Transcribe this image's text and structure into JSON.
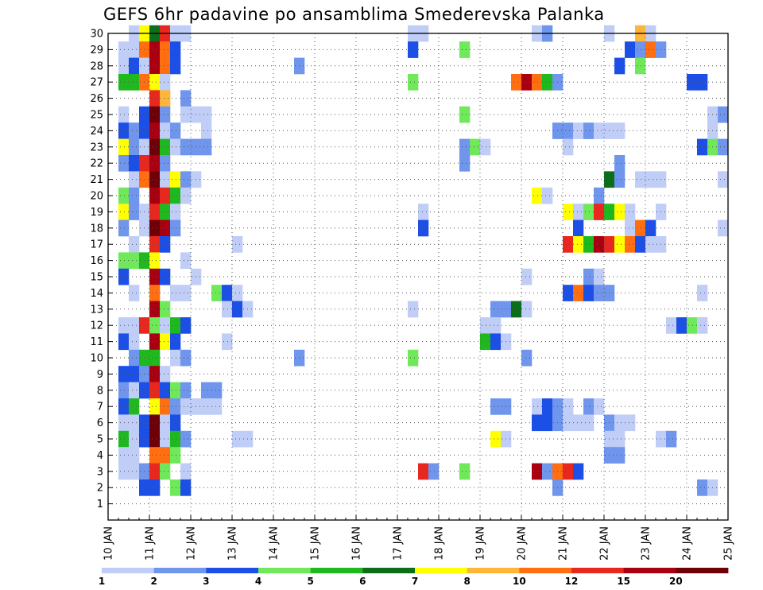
{
  "chart_data": {
    "type": "heatmap",
    "title": "GEFS 6hr padavine po ansamblima Smederevska Palanka",
    "xlabel": "",
    "ylabel": "",
    "x_tick_labels": [
      "10 JAN",
      "11 JAN",
      "12 JAN",
      "13 JAN",
      "14 JAN",
      "15 JAN",
      "16 JAN",
      "17 JAN",
      "18 JAN",
      "19 JAN",
      "20 JAN",
      "21 JAN",
      "22 JAN",
      "23 JAN",
      "24 JAN",
      "25 JAN"
    ],
    "y_tick_labels": [
      "1",
      "2",
      "3",
      "4",
      "5",
      "6",
      "7",
      "8",
      "9",
      "10",
      "11",
      "12",
      "13",
      "14",
      "15",
      "16",
      "17",
      "18",
      "19",
      "20",
      "21",
      "22",
      "23",
      "24",
      "25",
      "26",
      "27",
      "28",
      "29",
      "30"
    ],
    "xlim_days": [
      10,
      25
    ],
    "ylim_members": [
      0,
      30
    ],
    "step_hours": 6,
    "grid": true,
    "colorbar": {
      "placement": "bottom",
      "tick_labels": [
        "1",
        "2",
        "3",
        "4",
        "5",
        "6",
        "7",
        "8",
        "10",
        "12",
        "15",
        "20"
      ],
      "colors": [
        "#bfcdf7",
        "#6f95ec",
        "#1c4fe6",
        "#6fe85a",
        "#1fb91f",
        "#0c6e1a",
        "#ffff00",
        "#ffb638",
        "#ff6e10",
        "#e8281e",
        "#a80010",
        "#6e0008"
      ]
    },
    "cells_format": "[member, day_of_january, precipitation_class_1_to_12]",
    "cells": [
      [
        30,
        10.5,
        1
      ],
      [
        30,
        10.75,
        7
      ],
      [
        30,
        11.0,
        6
      ],
      [
        30,
        11.25,
        10
      ],
      [
        30,
        11.5,
        1
      ],
      [
        30,
        11.75,
        1
      ],
      [
        30,
        17.25,
        1
      ],
      [
        30,
        17.5,
        1
      ],
      [
        30,
        20.25,
        1
      ],
      [
        30,
        20.5,
        2
      ],
      [
        30,
        22.0,
        1
      ],
      [
        30,
        22.75,
        8
      ],
      [
        30,
        23.0,
        1
      ],
      [
        29,
        10.25,
        1
      ],
      [
        29,
        10.5,
        1
      ],
      [
        29,
        10.75,
        9
      ],
      [
        29,
        11.0,
        11
      ],
      [
        29,
        11.25,
        9
      ],
      [
        29,
        11.5,
        3
      ],
      [
        29,
        17.25,
        3
      ],
      [
        29,
        18.5,
        4
      ],
      [
        29,
        22.5,
        3
      ],
      [
        29,
        22.75,
        2
      ],
      [
        29,
        23.0,
        9
      ],
      [
        29,
        23.25,
        2
      ],
      [
        28,
        10.25,
        1
      ],
      [
        28,
        10.5,
        3
      ],
      [
        28,
        10.75,
        1
      ],
      [
        28,
        11.0,
        11
      ],
      [
        28,
        11.25,
        9
      ],
      [
        28,
        11.5,
        3
      ],
      [
        28,
        14.5,
        2
      ],
      [
        28,
        22.25,
        3
      ],
      [
        28,
        22.75,
        4
      ],
      [
        27,
        10.25,
        5
      ],
      [
        27,
        10.5,
        5
      ],
      [
        27,
        10.75,
        9
      ],
      [
        27,
        11.0,
        7
      ],
      [
        27,
        11.25,
        1
      ],
      [
        27,
        17.25,
        4
      ],
      [
        27,
        19.75,
        9
      ],
      [
        27,
        20.0,
        11
      ],
      [
        27,
        20.25,
        9
      ],
      [
        27,
        20.5,
        5
      ],
      [
        27,
        20.75,
        2
      ],
      [
        27,
        24.0,
        3
      ],
      [
        27,
        24.25,
        3
      ],
      [
        26,
        11.0,
        10
      ],
      [
        26,
        11.25,
        8
      ],
      [
        26,
        11.75,
        2
      ],
      [
        25,
        10.25,
        1
      ],
      [
        25,
        10.75,
        3
      ],
      [
        25,
        11.0,
        12
      ],
      [
        25,
        11.25,
        2
      ],
      [
        25,
        11.75,
        1
      ],
      [
        25,
        12.0,
        1
      ],
      [
        25,
        12.25,
        1
      ],
      [
        25,
        18.5,
        4
      ],
      [
        25,
        24.5,
        1
      ],
      [
        25,
        24.75,
        2
      ],
      [
        24,
        10.25,
        3
      ],
      [
        24,
        10.5,
        2
      ],
      [
        24,
        10.75,
        3
      ],
      [
        24,
        11.0,
        11
      ],
      [
        24,
        11.25,
        1
      ],
      [
        24,
        11.5,
        2
      ],
      [
        24,
        12.25,
        1
      ],
      [
        24,
        20.75,
        2
      ],
      [
        24,
        21.0,
        2
      ],
      [
        24,
        21.25,
        1
      ],
      [
        24,
        21.5,
        2
      ],
      [
        24,
        21.75,
        1
      ],
      [
        24,
        22.0,
        1
      ],
      [
        24,
        22.25,
        1
      ],
      [
        24,
        24.5,
        1
      ],
      [
        23,
        10.25,
        7
      ],
      [
        23,
        10.5,
        2
      ],
      [
        23,
        10.75,
        1
      ],
      [
        23,
        11.0,
        12
      ],
      [
        23,
        11.25,
        5
      ],
      [
        23,
        11.5,
        1
      ],
      [
        23,
        11.75,
        2
      ],
      [
        23,
        12.0,
        2
      ],
      [
        23,
        12.25,
        2
      ],
      [
        23,
        18.5,
        2
      ],
      [
        23,
        18.75,
        4
      ],
      [
        23,
        19.0,
        1
      ],
      [
        23,
        21.0,
        1
      ],
      [
        23,
        24.25,
        3
      ],
      [
        23,
        24.5,
        4
      ],
      [
        23,
        24.75,
        2
      ],
      [
        22,
        10.25,
        2
      ],
      [
        22,
        10.5,
        3
      ],
      [
        22,
        10.75,
        10
      ],
      [
        22,
        11.0,
        11
      ],
      [
        22,
        11.25,
        2
      ],
      [
        22,
        18.5,
        2
      ],
      [
        22,
        22.25,
        2
      ],
      [
        21,
        10.5,
        1
      ],
      [
        21,
        10.75,
        9
      ],
      [
        21,
        11.0,
        12
      ],
      [
        21,
        11.25,
        1
      ],
      [
        21,
        11.5,
        7
      ],
      [
        21,
        11.75,
        2
      ],
      [
        21,
        12.0,
        1
      ],
      [
        21,
        22.0,
        6
      ],
      [
        21,
        22.25,
        2
      ],
      [
        21,
        22.75,
        1
      ],
      [
        21,
        23.0,
        1
      ],
      [
        21,
        23.25,
        1
      ],
      [
        21,
        24.75,
        1
      ],
      [
        20,
        10.25,
        4
      ],
      [
        20,
        10.5,
        2
      ],
      [
        20,
        11.0,
        11
      ],
      [
        20,
        11.25,
        10
      ],
      [
        20,
        11.5,
        5
      ],
      [
        20,
        11.75,
        1
      ],
      [
        20,
        20.25,
        7
      ],
      [
        20,
        20.5,
        1
      ],
      [
        20,
        21.75,
        2
      ],
      [
        19,
        10.25,
        7
      ],
      [
        19,
        10.5,
        2
      ],
      [
        19,
        10.75,
        1
      ],
      [
        19,
        11.0,
        10
      ],
      [
        19,
        11.25,
        5
      ],
      [
        19,
        11.5,
        1
      ],
      [
        19,
        17.5,
        1
      ],
      [
        19,
        21.0,
        7
      ],
      [
        19,
        21.25,
        1
      ],
      [
        19,
        21.5,
        4
      ],
      [
        19,
        21.75,
        10
      ],
      [
        19,
        22.0,
        5
      ],
      [
        19,
        22.25,
        7
      ],
      [
        19,
        22.5,
        1
      ],
      [
        19,
        23.25,
        1
      ],
      [
        18,
        10.25,
        2
      ],
      [
        18,
        10.75,
        1
      ],
      [
        18,
        11.0,
        12
      ],
      [
        18,
        11.25,
        11
      ],
      [
        18,
        11.5,
        2
      ],
      [
        18,
        17.5,
        3
      ],
      [
        18,
        21.25,
        3
      ],
      [
        18,
        22.5,
        1
      ],
      [
        18,
        22.75,
        9
      ],
      [
        18,
        23.0,
        3
      ],
      [
        18,
        24.75,
        1
      ],
      [
        17,
        10.5,
        1
      ],
      [
        17,
        11.0,
        10
      ],
      [
        17,
        11.25,
        3
      ],
      [
        17,
        13.0,
        1
      ],
      [
        17,
        21.0,
        10
      ],
      [
        17,
        21.25,
        7
      ],
      [
        17,
        21.5,
        5
      ],
      [
        17,
        21.75,
        11
      ],
      [
        17,
        22.0,
        10
      ],
      [
        17,
        22.25,
        7
      ],
      [
        17,
        22.5,
        9
      ],
      [
        17,
        22.75,
        3
      ],
      [
        17,
        23.0,
        1
      ],
      [
        17,
        23.25,
        1
      ],
      [
        16,
        10.25,
        4
      ],
      [
        16,
        10.5,
        4
      ],
      [
        16,
        10.75,
        5
      ],
      [
        16,
        11.0,
        7
      ],
      [
        16,
        11.75,
        1
      ],
      [
        15,
        10.25,
        3
      ],
      [
        15,
        11.0,
        11
      ],
      [
        15,
        11.25,
        3
      ],
      [
        15,
        12.0,
        1
      ],
      [
        15,
        20.0,
        1
      ],
      [
        15,
        21.5,
        2
      ],
      [
        15,
        21.75,
        1
      ],
      [
        14,
        10.5,
        1
      ],
      [
        14,
        11.0,
        9
      ],
      [
        14,
        11.5,
        1
      ],
      [
        14,
        11.75,
        1
      ],
      [
        14,
        12.5,
        4
      ],
      [
        14,
        12.75,
        3
      ],
      [
        14,
        13.0,
        1
      ],
      [
        14,
        21.0,
        3
      ],
      [
        14,
        21.25,
        9
      ],
      [
        14,
        21.5,
        3
      ],
      [
        14,
        21.75,
        2
      ],
      [
        14,
        22.0,
        2
      ],
      [
        14,
        24.25,
        1
      ],
      [
        13,
        11.0,
        11
      ],
      [
        13,
        11.25,
        4
      ],
      [
        13,
        12.75,
        1
      ],
      [
        13,
        13.0,
        3
      ],
      [
        13,
        13.25,
        1
      ],
      [
        13,
        17.25,
        1
      ],
      [
        13,
        19.25,
        2
      ],
      [
        13,
        19.5,
        2
      ],
      [
        13,
        19.75,
        6
      ],
      [
        13,
        20.0,
        1
      ],
      [
        12,
        10.25,
        1
      ],
      [
        12,
        10.5,
        1
      ],
      [
        12,
        10.75,
        10
      ],
      [
        12,
        11.0,
        4
      ],
      [
        12,
        11.25,
        1
      ],
      [
        12,
        11.5,
        5
      ],
      [
        12,
        11.75,
        3
      ],
      [
        12,
        19.0,
        1
      ],
      [
        12,
        19.25,
        1
      ],
      [
        12,
        23.5,
        1
      ],
      [
        12,
        23.75,
        3
      ],
      [
        12,
        24.0,
        4
      ],
      [
        12,
        24.25,
        1
      ],
      [
        11,
        10.25,
        3
      ],
      [
        11,
        10.5,
        1
      ],
      [
        11,
        11.0,
        11
      ],
      [
        11,
        11.25,
        7
      ],
      [
        11,
        11.5,
        3
      ],
      [
        11,
        12.75,
        1
      ],
      [
        11,
        19.0,
        5
      ],
      [
        11,
        19.25,
        3
      ],
      [
        11,
        19.5,
        1
      ],
      [
        10,
        10.5,
        2
      ],
      [
        10,
        10.75,
        5
      ],
      [
        10,
        11.0,
        5
      ],
      [
        10,
        11.5,
        1
      ],
      [
        10,
        11.75,
        2
      ],
      [
        10,
        14.5,
        2
      ],
      [
        10,
        17.25,
        4
      ],
      [
        10,
        20.0,
        2
      ],
      [
        9,
        10.25,
        3
      ],
      [
        9,
        10.5,
        3
      ],
      [
        9,
        10.75,
        2
      ],
      [
        9,
        11.0,
        11
      ],
      [
        9,
        11.25,
        1
      ],
      [
        8,
        10.25,
        2
      ],
      [
        8,
        10.5,
        1
      ],
      [
        8,
        10.75,
        3
      ],
      [
        8,
        11.0,
        10
      ],
      [
        8,
        11.25,
        3
      ],
      [
        8,
        11.5,
        4
      ],
      [
        8,
        11.75,
        2
      ],
      [
        8,
        12.25,
        2
      ],
      [
        8,
        12.5,
        2
      ],
      [
        7,
        10.25,
        3
      ],
      [
        7,
        10.5,
        5
      ],
      [
        7,
        11.0,
        7
      ],
      [
        7,
        11.25,
        9
      ],
      [
        7,
        11.5,
        2
      ],
      [
        7,
        11.75,
        1
      ],
      [
        7,
        12.0,
        1
      ],
      [
        7,
        12.25,
        1
      ],
      [
        7,
        12.5,
        1
      ],
      [
        7,
        19.25,
        2
      ],
      [
        7,
        19.5,
        2
      ],
      [
        7,
        20.25,
        1
      ],
      [
        7,
        20.5,
        3
      ],
      [
        7,
        20.75,
        2
      ],
      [
        7,
        21.0,
        1
      ],
      [
        7,
        21.5,
        2
      ],
      [
        7,
        21.75,
        1
      ],
      [
        6,
        10.25,
        1
      ],
      [
        6,
        10.5,
        1
      ],
      [
        6,
        10.75,
        3
      ],
      [
        6,
        11.0,
        12
      ],
      [
        6,
        11.25,
        1
      ],
      [
        6,
        11.5,
        3
      ],
      [
        6,
        20.25,
        3
      ],
      [
        6,
        20.5,
        3
      ],
      [
        6,
        20.75,
        2
      ],
      [
        6,
        21.0,
        1
      ],
      [
        6,
        21.25,
        1
      ],
      [
        6,
        21.5,
        1
      ],
      [
        6,
        22.0,
        2
      ],
      [
        6,
        22.25,
        1
      ],
      [
        6,
        22.5,
        1
      ],
      [
        5,
        10.25,
        5
      ],
      [
        5,
        10.5,
        1
      ],
      [
        5,
        10.75,
        3
      ],
      [
        5,
        11.0,
        12
      ],
      [
        5,
        11.25,
        1
      ],
      [
        5,
        11.5,
        5
      ],
      [
        5,
        11.75,
        2
      ],
      [
        5,
        13.0,
        1
      ],
      [
        5,
        13.25,
        1
      ],
      [
        5,
        19.25,
        7
      ],
      [
        5,
        19.5,
        1
      ],
      [
        5,
        22.0,
        1
      ],
      [
        5,
        22.25,
        1
      ],
      [
        5,
        23.25,
        1
      ],
      [
        5,
        23.5,
        2
      ],
      [
        4,
        10.25,
        1
      ],
      [
        4,
        10.5,
        1
      ],
      [
        4,
        11.0,
        9
      ],
      [
        4,
        11.25,
        9
      ],
      [
        4,
        11.5,
        4
      ],
      [
        4,
        22.0,
        2
      ],
      [
        4,
        22.25,
        2
      ],
      [
        3,
        10.25,
        1
      ],
      [
        3,
        10.5,
        1
      ],
      [
        3,
        10.75,
        2
      ],
      [
        3,
        11.0,
        10
      ],
      [
        3,
        11.25,
        4
      ],
      [
        3,
        11.75,
        1
      ],
      [
        3,
        17.5,
        10
      ],
      [
        3,
        17.75,
        2
      ],
      [
        3,
        18.5,
        4
      ],
      [
        3,
        20.25,
        11
      ],
      [
        3,
        20.5,
        2
      ],
      [
        3,
        20.75,
        9
      ],
      [
        3,
        21.0,
        10
      ],
      [
        3,
        21.25,
        3
      ],
      [
        2,
        10.75,
        3
      ],
      [
        2,
        11.0,
        3
      ],
      [
        2,
        11.5,
        4
      ],
      [
        2,
        11.75,
        3
      ],
      [
        2,
        20.75,
        2
      ],
      [
        2,
        24.25,
        2
      ],
      [
        2,
        24.5,
        1
      ]
    ]
  }
}
